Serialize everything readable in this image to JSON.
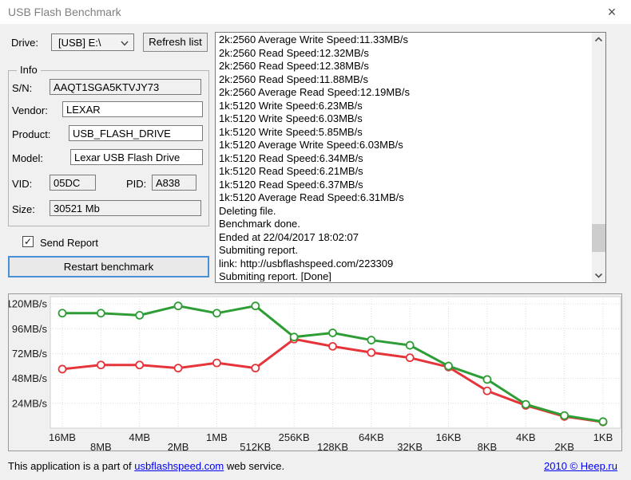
{
  "window": {
    "title": "USB Flash Benchmark",
    "close_icon": "×"
  },
  "controls": {
    "drive_label": "Drive:",
    "drive_value": "[USB] E:\\",
    "refresh_button": "Refresh list",
    "send_report_label": "Send Report",
    "send_report_checked": true,
    "check_glyph": "✓",
    "restart_button": "Restart benchmark"
  },
  "info": {
    "legend": "Info",
    "sn_label": "S/N:",
    "sn_value": "AAQT1SGA5KTVJY73",
    "vendor_label": "Vendor:",
    "vendor_value": "LEXAR",
    "product_label": "Product:",
    "product_value": "USB_FLASH_DRIVE",
    "model_label": "Model:",
    "model_value": "Lexar USB Flash Drive",
    "vid_label": "VID:",
    "vid_value": "05DC",
    "pid_label": "PID:",
    "pid_value": "A838",
    "size_label": "Size:",
    "size_value": "30521 Mb"
  },
  "log": {
    "lines": [
      "2k:2560 Average Write Speed:11.33MB/s",
      "2k:2560 Read Speed:12.32MB/s",
      "2k:2560 Read Speed:12.38MB/s",
      "2k:2560 Read Speed:11.88MB/s",
      "2k:2560 Average Read Speed:12.19MB/s",
      "1k:5120 Write Speed:6.23MB/s",
      "1k:5120 Write Speed:6.03MB/s",
      "1k:5120 Write Speed:5.85MB/s",
      "1k:5120 Average Write Speed:6.03MB/s",
      "1k:5120 Read Speed:6.34MB/s",
      "1k:5120 Read Speed:6.21MB/s",
      "1k:5120 Read Speed:6.37MB/s",
      "1k:5120 Average Read Speed:6.31MB/s",
      "Deleting file.",
      "Benchmark done.",
      "Ended at 22/04/2017 18:02:07",
      "Submiting report.",
      "link: http://usbflashspeed.com/223309",
      "Submiting report. [Done]"
    ]
  },
  "chart_data": {
    "type": "line",
    "categories": [
      "16MB",
      "8MB",
      "4MB",
      "2MB",
      "1MB",
      "512KB",
      "256KB",
      "128KB",
      "64KB",
      "32KB",
      "16KB",
      "8KB",
      "4KB",
      "2KB",
      "1KB"
    ],
    "series": [
      {
        "name": "Read Speed",
        "color": "#2f9d35",
        "values": [
          111,
          111,
          109,
          118,
          111,
          118,
          88,
          92,
          85,
          80,
          60,
          47,
          23,
          12.2,
          6.3
        ]
      },
      {
        "name": "Write Speed",
        "color": "#e5343a",
        "values": [
          57,
          61,
          61,
          58,
          63,
          58,
          86,
          79,
          73,
          68,
          59,
          36,
          22,
          11.3,
          6.0
        ]
      }
    ],
    "ytick_labels": [
      "120MB/s",
      "96MB/s",
      "72MB/s",
      "48MB/s",
      "24MB/s"
    ],
    "ytick_values": [
      120,
      96,
      72,
      48,
      24
    ],
    "ylim": [
      0,
      127
    ],
    "xlabel": "",
    "ylabel": "",
    "grid": true,
    "legend_position": "none"
  },
  "colors": {
    "link": "#0000ee",
    "accent_focus": "#4a90d9"
  },
  "footer": {
    "prefix": "This application is a part of ",
    "link": "usbflashspeed.com",
    "suffix": " web service.",
    "copyright_link": "2010 © Heep.ru"
  }
}
